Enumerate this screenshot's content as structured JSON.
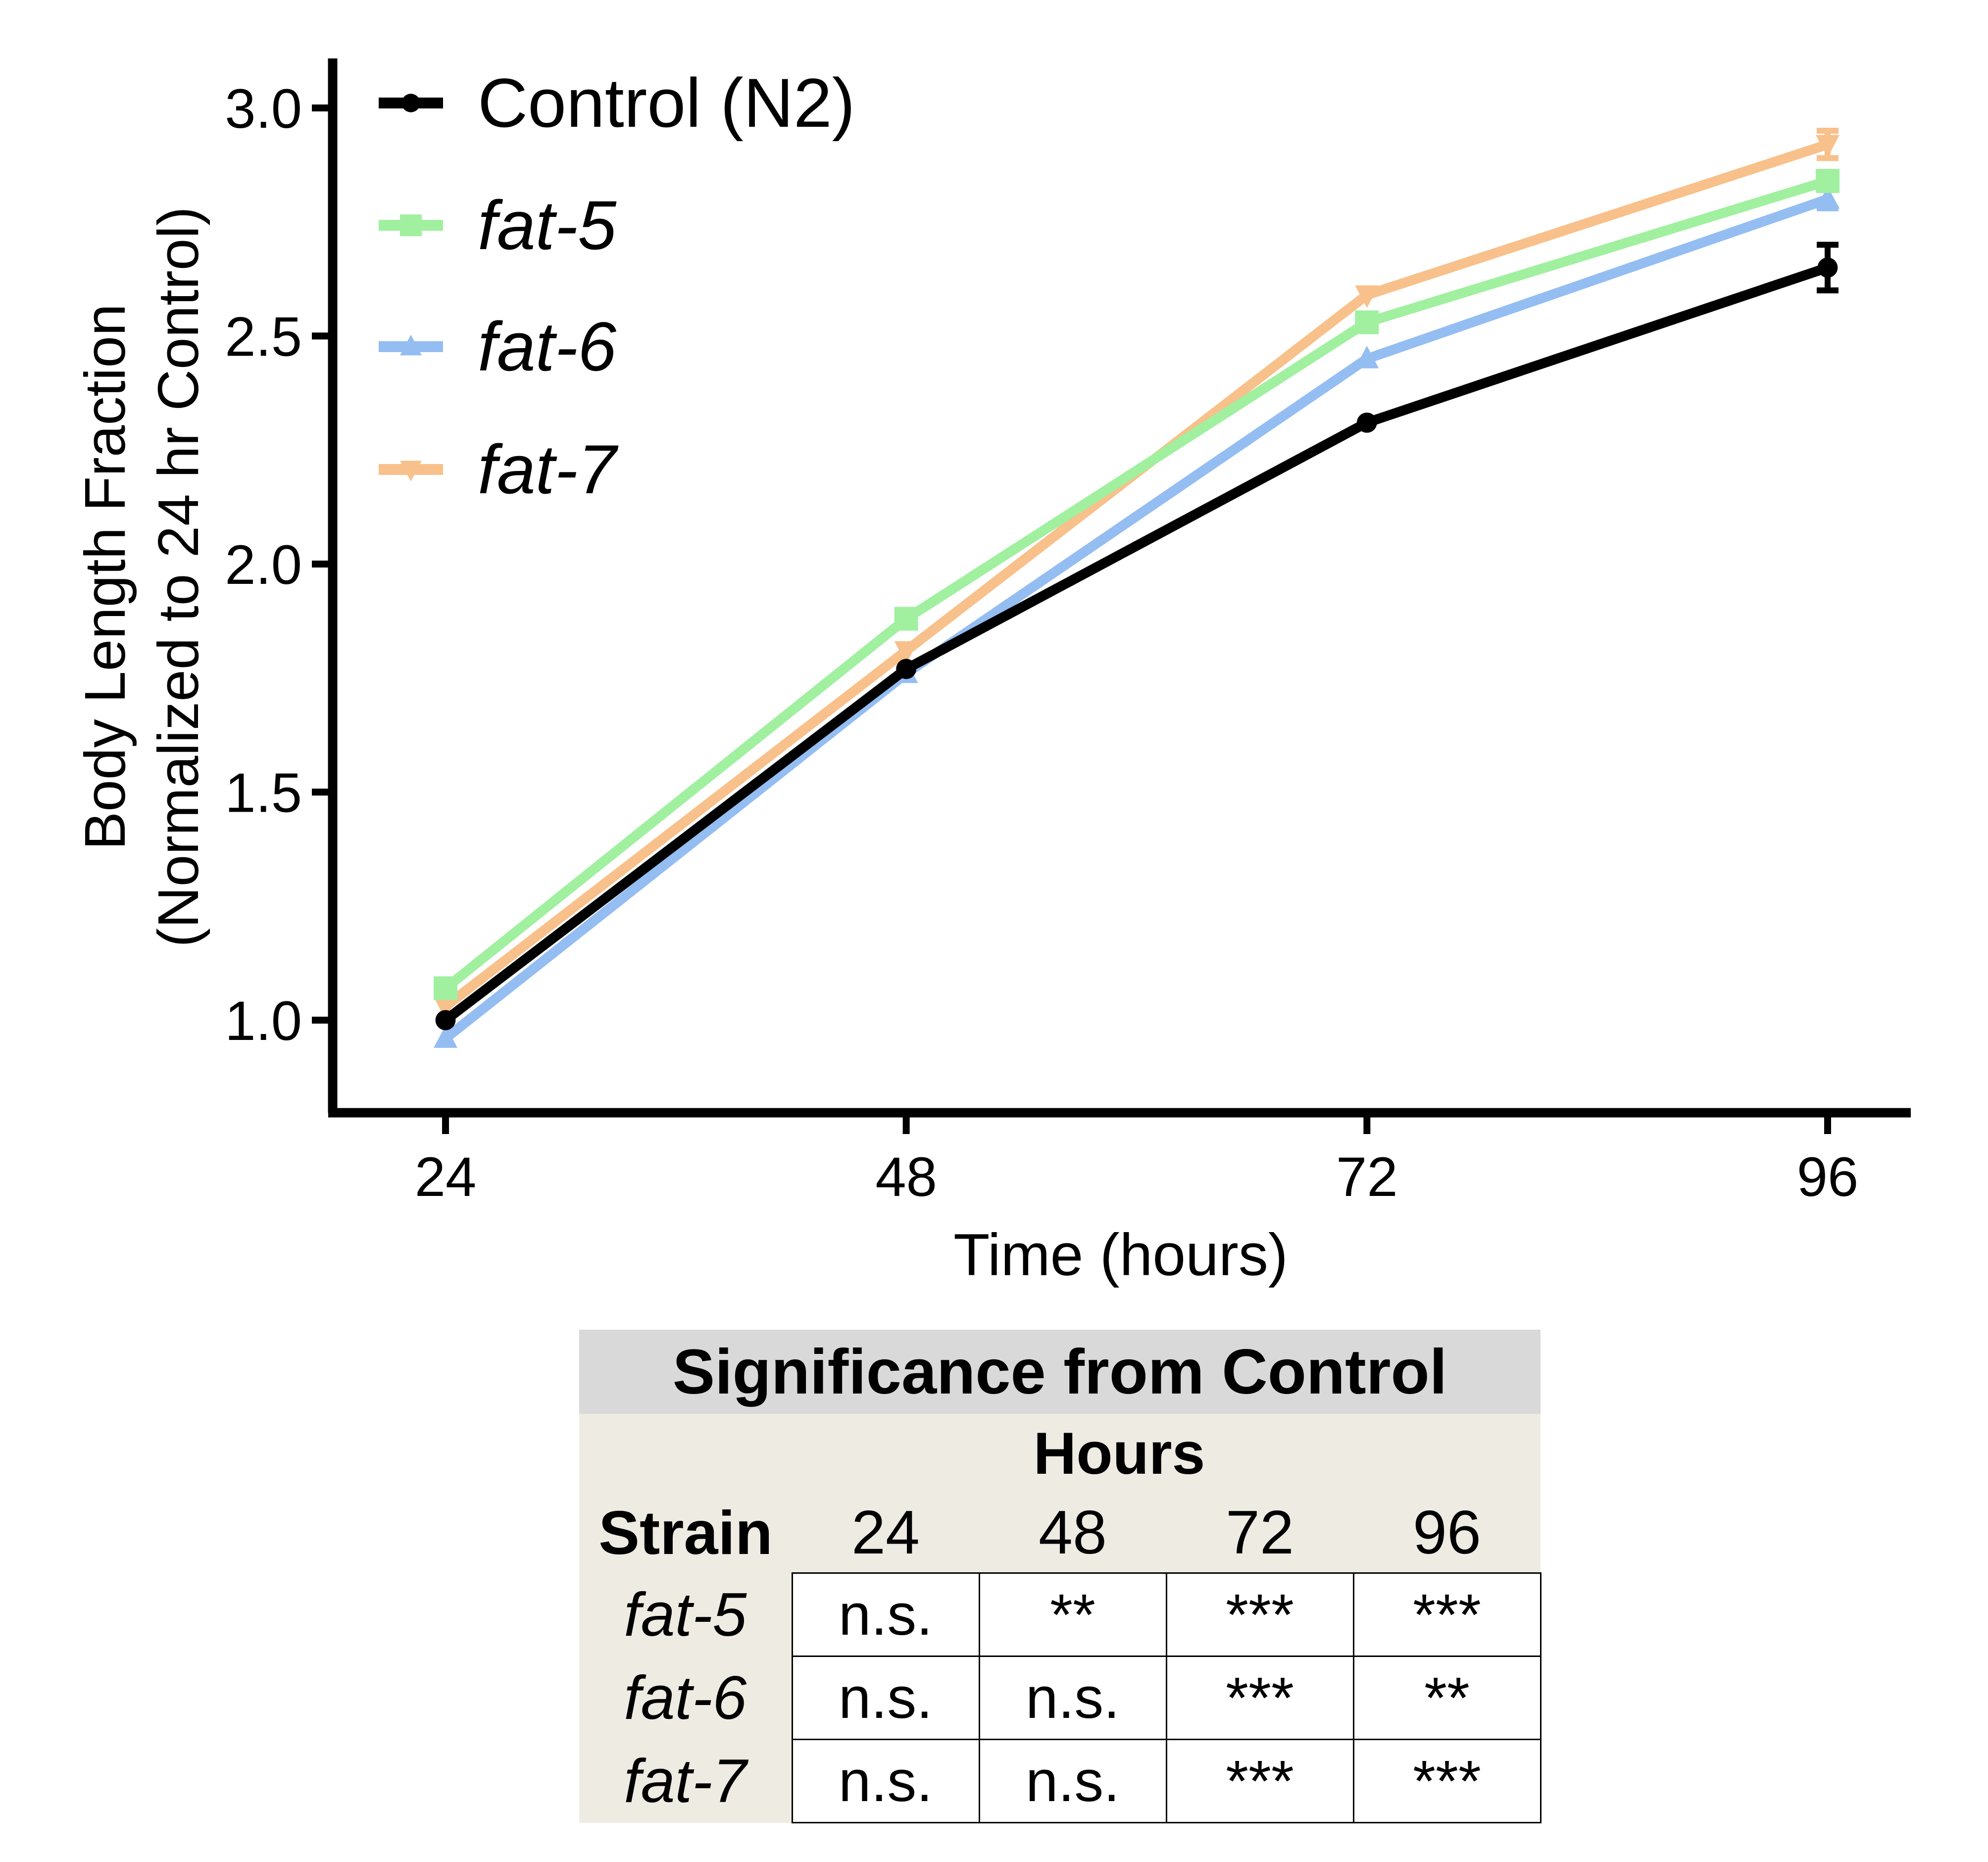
{
  "chart_data": {
    "type": "line",
    "xlabel": "Time (hours)",
    "ylabel": "Body Length Fraction",
    "ylabel2": "(Normalized to 24 hr Control)",
    "x": [
      24,
      48,
      72,
      96
    ],
    "x_tick_labels": [
      "24",
      "48",
      "72",
      "96"
    ],
    "y_ticks": [
      1.0,
      1.5,
      2.0,
      2.5,
      3.0
    ],
    "y_tick_labels": [
      "1.0",
      "1.5",
      "2.0",
      "2.5",
      "3.0"
    ],
    "ylim": [
      0.8,
      3.1
    ],
    "legend_position": "top-left",
    "series": [
      {
        "name": "Control (N2)",
        "italic": false,
        "color": "#000000",
        "marker": "circle",
        "values": [
          1.0,
          1.77,
          2.31,
          2.65
        ],
        "error": [
          0.01,
          0.01,
          0.01,
          0.05
        ]
      },
      {
        "name": "fat-5",
        "italic": true,
        "color": "#a0f0a0",
        "marker": "square",
        "values": [
          1.07,
          1.88,
          2.53,
          2.84
        ],
        "error": [
          0.01,
          0.01,
          0.01,
          0.02
        ]
      },
      {
        "name": "fat-6",
        "italic": true,
        "color": "#94bdf2",
        "marker": "triangle-up",
        "values": [
          0.96,
          1.76,
          2.45,
          2.8
        ],
        "error": [
          0.01,
          0.01,
          0.01,
          0.02
        ]
      },
      {
        "name": "fat-7",
        "italic": true,
        "color": "#f8c08a",
        "marker": "triangle-down",
        "values": [
          1.03,
          1.81,
          2.59,
          2.92
        ],
        "error": [
          0.01,
          0.01,
          0.01,
          0.03
        ]
      }
    ]
  },
  "significance_table": {
    "title": "Significance from Control",
    "hours_label": "Hours",
    "strain_label": "Strain",
    "hours": [
      "24",
      "48",
      "72",
      "96"
    ],
    "rows": [
      {
        "strain": "fat-5",
        "values": [
          "n.s.",
          "**",
          "***",
          "***"
        ]
      },
      {
        "strain": "fat-6",
        "values": [
          "n.s.",
          "n.s.",
          "***",
          "**"
        ]
      },
      {
        "strain": "fat-7",
        "values": [
          "n.s.",
          "n.s.",
          "***",
          "***"
        ]
      }
    ]
  }
}
